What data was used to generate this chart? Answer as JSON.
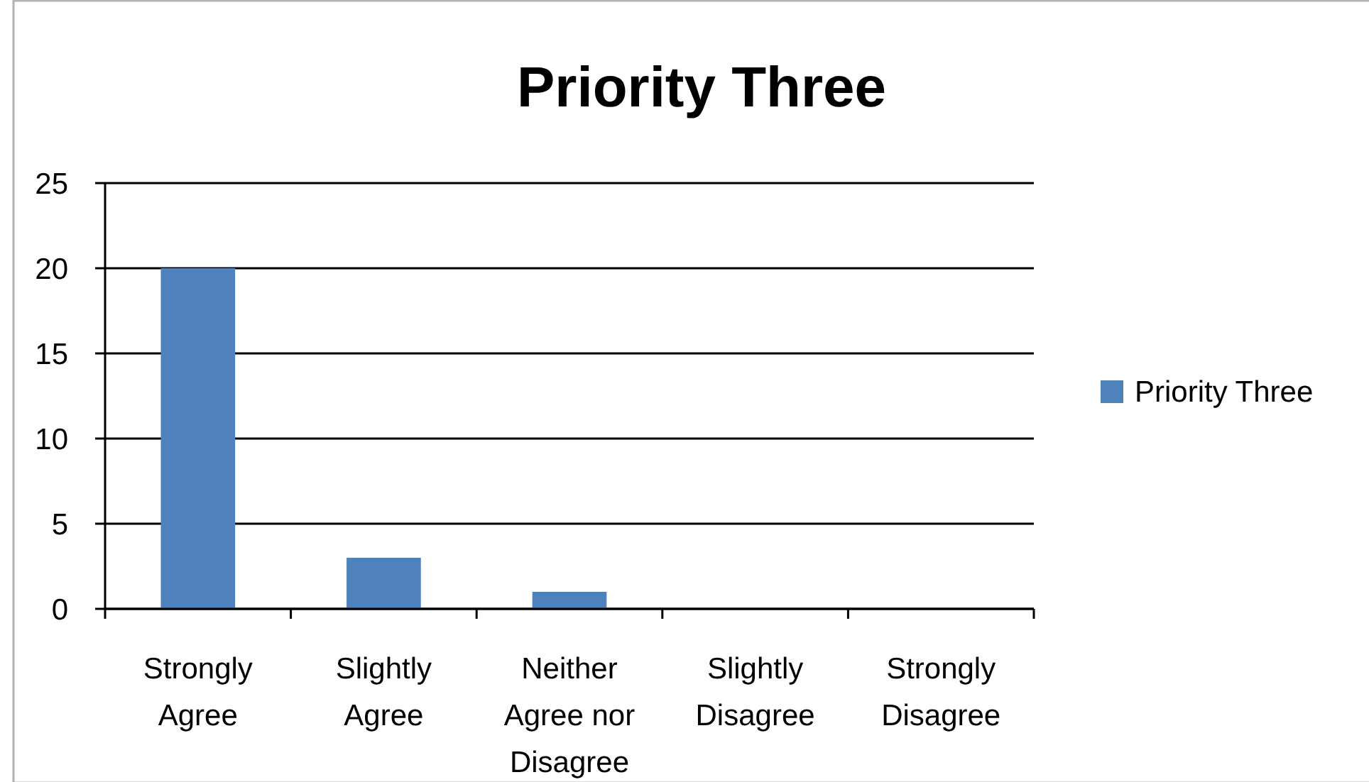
{
  "chart_data": {
    "type": "bar",
    "title": "Priority Three",
    "categories": [
      "Strongly Agree",
      "Slightly Agree",
      "Neither Agree nor Disagree",
      "Slightly Disagree",
      "Strongly Disagree"
    ],
    "series": [
      {
        "name": "Priority Three",
        "color": "#4f81bd",
        "values": [
          20,
          3,
          1,
          0,
          0
        ]
      }
    ],
    "ylim": [
      0,
      25
    ],
    "yticks": [
      0,
      5,
      10,
      15,
      20,
      25
    ],
    "grid": "y",
    "legend": "right"
  }
}
